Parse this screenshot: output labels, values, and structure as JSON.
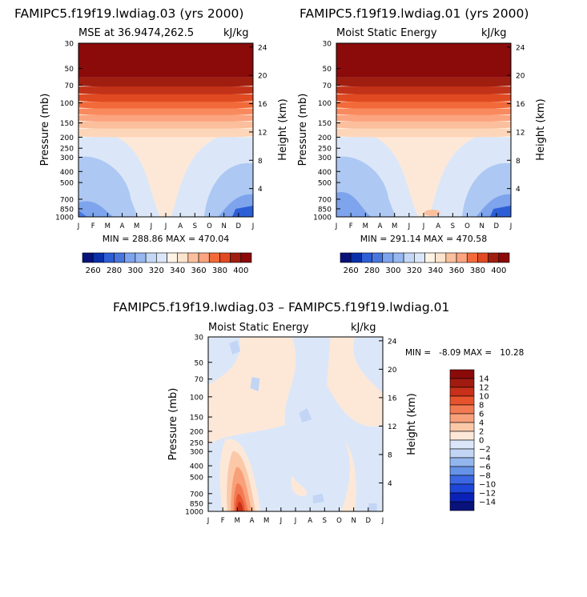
{
  "colors": {
    "positive_scale": [
      "#fff3e6",
      "#fde4cf",
      "#fdd5b9",
      "#fcbf9d",
      "#fba47f",
      "#f98a5e",
      "#f26a3a",
      "#e04a22",
      "#c23218",
      "#a01e10",
      "#8b0a0a"
    ],
    "negative_scale": [
      "#dbe7f8",
      "#c4d8f6",
      "#adc8f3",
      "#96b7f0",
      "#7da4ec",
      "#628ee5",
      "#4876dd",
      "#2d5ed6",
      "#1546cc",
      "#0a2fa8",
      "#071c7a"
    ],
    "diff_scale": [
      "#08127a",
      "#0a22b8",
      "#1e46d8",
      "#3b68e2",
      "#6692e8",
      "#94b6ef",
      "#c2d5f5",
      "#dbe7f8",
      "#fde8d8",
      "#fbc9a8",
      "#f8a07a",
      "#f27a52",
      "#e6532c",
      "#c8301a",
      "#a01a10",
      "#8b0a0a"
    ]
  },
  "common": {
    "pressure_ticks": [
      "30",
      "50",
      "70",
      "100",
      "150",
      "200",
      "250",
      "300",
      "400",
      "500",
      "700",
      "850",
      "1000"
    ],
    "height_ticks": [
      "24",
      "20",
      "16",
      "12",
      "8",
      "4"
    ],
    "month_ticks": [
      "J",
      "F",
      "M",
      "A",
      "M",
      "J",
      "J",
      "A",
      "S",
      "O",
      "N",
      "D",
      "J"
    ],
    "y_axis_label": "Pressure (mb)",
    "y2_axis_label": "Height (km)",
    "units": "kJ/kg"
  },
  "chart_data": [
    {
      "type": "heatmap",
      "title": "FAMIPC5.f19f19.lwdiag.03 (yrs 2000)",
      "subtitle_left": "MSE at 36.9474,262.5",
      "subtitle_right": "kJ/kg",
      "stats": "MIN = 288.86  MAX = 470.04",
      "x": [
        "J",
        "F",
        "M",
        "A",
        "M",
        "J",
        "J",
        "A",
        "S",
        "O",
        "N",
        "D",
        "J"
      ],
      "y_pressure_mb": [
        30,
        50,
        70,
        100,
        150,
        200,
        250,
        300,
        400,
        500,
        700,
        850,
        1000
      ],
      "colorbar_levels": [
        260,
        270,
        280,
        290,
        300,
        310,
        320,
        330,
        340,
        350,
        360,
        370,
        380,
        390,
        400
      ],
      "colorbar_labels": [
        "260",
        "280",
        "300",
        "320",
        "340",
        "360",
        "380",
        "400"
      ],
      "min": 288.86,
      "max": 470.04
    },
    {
      "type": "heatmap",
      "title": "FAMIPC5.f19f19.lwdiag.01 (yrs 2000)",
      "subtitle_left": "Moist Static Energy",
      "subtitle_right": "kJ/kg",
      "stats": "MIN = 291.14  MAX = 470.58",
      "x": [
        "J",
        "F",
        "M",
        "A",
        "M",
        "J",
        "J",
        "A",
        "S",
        "O",
        "N",
        "D",
        "J"
      ],
      "y_pressure_mb": [
        30,
        50,
        70,
        100,
        150,
        200,
        250,
        300,
        400,
        500,
        700,
        850,
        1000
      ],
      "colorbar_levels": [
        260,
        270,
        280,
        290,
        300,
        310,
        320,
        330,
        340,
        350,
        360,
        370,
        380,
        390,
        400
      ],
      "colorbar_labels": [
        "260",
        "280",
        "300",
        "320",
        "340",
        "360",
        "380",
        "400"
      ],
      "min": 291.14,
      "max": 470.58
    },
    {
      "type": "heatmap",
      "title": "FAMIPC5.f19f19.lwdiag.03 – FAMIPC5.f19f19.lwdiag.01",
      "subtitle_left": "Moist Static Energy",
      "subtitle_right": "kJ/kg",
      "stats": "MIN =   -8.09 MAX =   10.28",
      "x": [
        "J",
        "F",
        "M",
        "A",
        "M",
        "J",
        "J",
        "A",
        "S",
        "O",
        "N",
        "D",
        "J"
      ],
      "y_pressure_mb": [
        30,
        50,
        70,
        100,
        150,
        200,
        250,
        300,
        400,
        500,
        700,
        850,
        1000
      ],
      "colorbar_levels": [
        -14,
        -12,
        -10,
        -8,
        -6,
        -4,
        -2,
        0,
        2,
        4,
        6,
        8,
        10,
        12,
        14
      ],
      "colorbar_labels": [
        "14",
        "12",
        "10",
        "8",
        "6",
        "4",
        "2",
        "0",
        "−2",
        "−4",
        "−6",
        "−8",
        "−10",
        "−12",
        "−14"
      ],
      "min": -8.09,
      "max": 10.28
    }
  ]
}
